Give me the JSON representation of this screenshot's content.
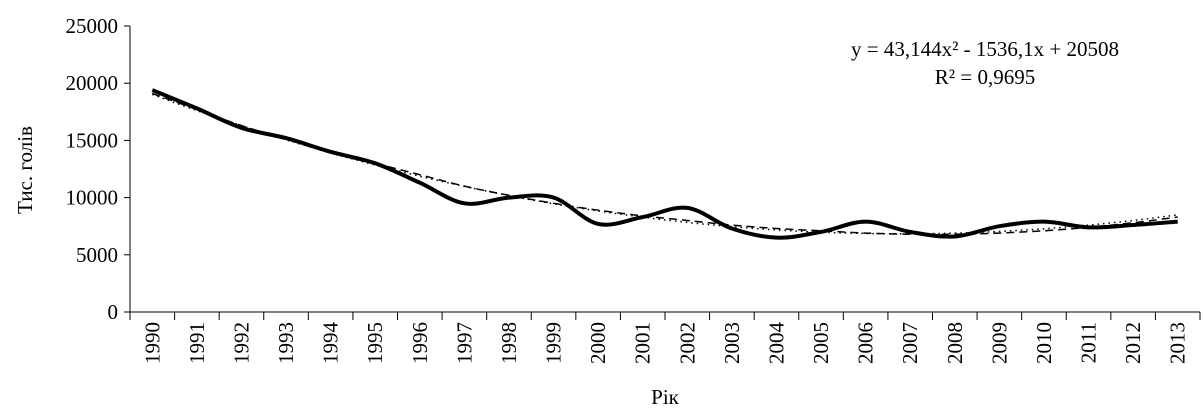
{
  "chart_data": {
    "type": "line",
    "y_label": "Тис. голів",
    "x_label": "Рік",
    "categories": [
      "1990",
      "1991",
      "1992",
      "1993",
      "1994",
      "1995",
      "1996",
      "1997",
      "1998",
      "1999",
      "2000",
      "2001",
      "2002",
      "2003",
      "2004",
      "2005",
      "2006",
      "2007",
      "2008",
      "2009",
      "2010",
      "2011",
      "2012",
      "2013"
    ],
    "series": [
      {
        "color": "#000000",
        "smooth": true,
        "values": [
          19400,
          17800,
          16100,
          15200,
          14000,
          13000,
          11300,
          9500,
          10000,
          10000,
          7700,
          8300,
          9100,
          7300,
          6500,
          7000,
          7900,
          7000,
          6600,
          7500,
          7900,
          7400,
          7600,
          7900
        ]
      }
    ],
    "trendlines": [
      {
        "style": "dotted",
        "color": "#000000",
        "values": [
          19015,
          17608,
          16288,
          15054,
          13906,
          12845,
          11869,
          10980,
          10178,
          9461,
          8831,
          8288,
          7830,
          7459,
          7174,
          6975,
          6863,
          6837,
          6897,
          7044,
          7276,
          7595,
          8001,
          8493
        ]
      },
      {
        "style": "dashed",
        "color": "#000000",
        "values": [
          19100,
          17700,
          16300,
          15100,
          14000,
          13000,
          12000,
          11000,
          10200,
          9500,
          8900,
          8400,
          8000,
          7600,
          7300,
          7100,
          6900,
          6800,
          6800,
          6900,
          7100,
          7400,
          7800,
          8300
        ]
      }
    ],
    "annotations": [
      "y = 43,144x² - 1536,1x + 20508",
      "R² = 0,9695"
    ],
    "ylim": [
      0,
      25000
    ],
    "yticks": [
      0,
      5000,
      10000,
      15000,
      20000,
      25000
    ]
  }
}
